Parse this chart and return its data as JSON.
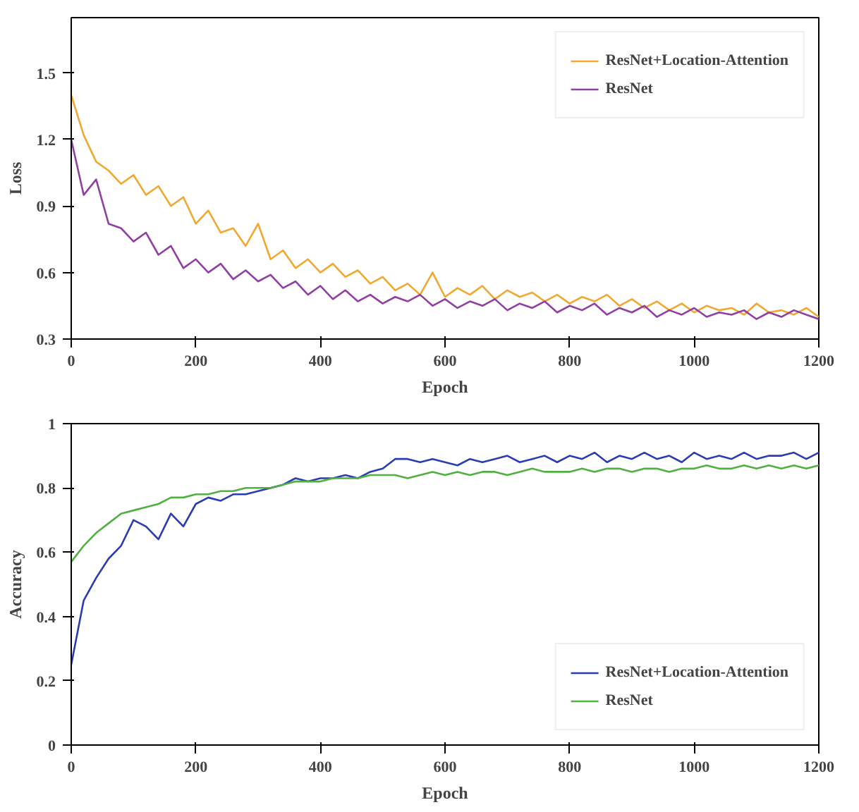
{
  "chart_data": [
    {
      "type": "line",
      "xlabel": "Epoch",
      "ylabel": "Loss",
      "xlim": [
        0,
        1200
      ],
      "ylim": [
        0.3,
        1.75
      ],
      "xticks": [
        0,
        200,
        400,
        600,
        800,
        1000,
        1200
      ],
      "yticks": [
        0.3,
        0.6,
        0.9,
        1.2,
        1.5
      ],
      "grid": false,
      "legend": "top right",
      "x": [
        0,
        20,
        40,
        60,
        80,
        100,
        120,
        140,
        160,
        180,
        200,
        220,
        240,
        260,
        280,
        300,
        320,
        340,
        360,
        380,
        400,
        420,
        440,
        460,
        480,
        500,
        520,
        540,
        560,
        580,
        600,
        620,
        640,
        660,
        680,
        700,
        720,
        740,
        760,
        780,
        800,
        820,
        840,
        860,
        880,
        900,
        920,
        940,
        960,
        980,
        1000,
        1020,
        1040,
        1060,
        1080,
        1100,
        1120,
        1140,
        1160,
        1180,
        1200
      ],
      "series": [
        {
          "name": "ResNet+Location-Attention",
          "color": "#f0a830",
          "values": [
            1.4,
            1.22,
            1.1,
            1.06,
            1.0,
            1.04,
            0.95,
            0.99,
            0.9,
            0.94,
            0.82,
            0.88,
            0.78,
            0.8,
            0.72,
            0.82,
            0.66,
            0.7,
            0.62,
            0.66,
            0.6,
            0.64,
            0.58,
            0.61,
            0.55,
            0.58,
            0.52,
            0.55,
            0.5,
            0.6,
            0.49,
            0.53,
            0.5,
            0.54,
            0.48,
            0.52,
            0.49,
            0.51,
            0.47,
            0.5,
            0.46,
            0.49,
            0.47,
            0.5,
            0.45,
            0.48,
            0.44,
            0.47,
            0.43,
            0.46,
            0.42,
            0.45,
            0.43,
            0.44,
            0.41,
            0.46,
            0.42,
            0.43,
            0.41,
            0.44,
            0.4
          ]
        },
        {
          "name": "ResNet",
          "color": "#9040a0",
          "values": [
            1.2,
            0.95,
            1.02,
            0.82,
            0.8,
            0.74,
            0.78,
            0.68,
            0.72,
            0.62,
            0.66,
            0.6,
            0.64,
            0.57,
            0.61,
            0.56,
            0.59,
            0.53,
            0.56,
            0.5,
            0.54,
            0.48,
            0.52,
            0.47,
            0.5,
            0.46,
            0.49,
            0.47,
            0.5,
            0.45,
            0.48,
            0.44,
            0.47,
            0.45,
            0.48,
            0.43,
            0.46,
            0.44,
            0.47,
            0.42,
            0.45,
            0.43,
            0.46,
            0.41,
            0.44,
            0.42,
            0.45,
            0.4,
            0.43,
            0.41,
            0.44,
            0.4,
            0.42,
            0.41,
            0.43,
            0.39,
            0.42,
            0.4,
            0.43,
            0.41,
            0.39
          ]
        }
      ]
    },
    {
      "type": "line",
      "xlabel": "Epoch",
      "ylabel": "Accuracy",
      "xlim": [
        0,
        1200
      ],
      "ylim": [
        0,
        1
      ],
      "xticks": [
        0,
        200,
        400,
        600,
        800,
        1000,
        1200
      ],
      "yticks": [
        0,
        0.2,
        0.4,
        0.6,
        0.8,
        1
      ],
      "grid": false,
      "legend": "bottom right",
      "x": [
        0,
        20,
        40,
        60,
        80,
        100,
        120,
        140,
        160,
        180,
        200,
        220,
        240,
        260,
        280,
        300,
        320,
        340,
        360,
        380,
        400,
        420,
        440,
        460,
        480,
        500,
        520,
        540,
        560,
        580,
        600,
        620,
        640,
        660,
        680,
        700,
        720,
        740,
        760,
        780,
        800,
        820,
        840,
        860,
        880,
        900,
        920,
        940,
        960,
        980,
        1000,
        1020,
        1040,
        1060,
        1080,
        1100,
        1120,
        1140,
        1160,
        1180,
        1200
      ],
      "series": [
        {
          "name": "ResNet+Location-Attention",
          "color": "#2a3cb0",
          "values": [
            0.25,
            0.45,
            0.52,
            0.58,
            0.62,
            0.7,
            0.68,
            0.64,
            0.72,
            0.68,
            0.75,
            0.77,
            0.76,
            0.78,
            0.78,
            0.79,
            0.8,
            0.81,
            0.83,
            0.82,
            0.83,
            0.83,
            0.84,
            0.83,
            0.85,
            0.86,
            0.89,
            0.89,
            0.88,
            0.89,
            0.88,
            0.87,
            0.89,
            0.88,
            0.89,
            0.9,
            0.88,
            0.89,
            0.9,
            0.88,
            0.9,
            0.89,
            0.91,
            0.88,
            0.9,
            0.89,
            0.91,
            0.89,
            0.9,
            0.88,
            0.91,
            0.89,
            0.9,
            0.89,
            0.91,
            0.89,
            0.9,
            0.9,
            0.91,
            0.89,
            0.91
          ]
        },
        {
          "name": "ResNet",
          "color": "#50b040",
          "values": [
            0.57,
            0.62,
            0.66,
            0.69,
            0.72,
            0.73,
            0.74,
            0.75,
            0.77,
            0.77,
            0.78,
            0.78,
            0.79,
            0.79,
            0.8,
            0.8,
            0.8,
            0.81,
            0.82,
            0.82,
            0.82,
            0.83,
            0.83,
            0.83,
            0.84,
            0.84,
            0.84,
            0.83,
            0.84,
            0.85,
            0.84,
            0.85,
            0.84,
            0.85,
            0.85,
            0.84,
            0.85,
            0.86,
            0.85,
            0.85,
            0.85,
            0.86,
            0.85,
            0.86,
            0.86,
            0.85,
            0.86,
            0.86,
            0.85,
            0.86,
            0.86,
            0.87,
            0.86,
            0.86,
            0.87,
            0.86,
            0.87,
            0.86,
            0.87,
            0.86,
            0.87
          ]
        }
      ]
    }
  ]
}
